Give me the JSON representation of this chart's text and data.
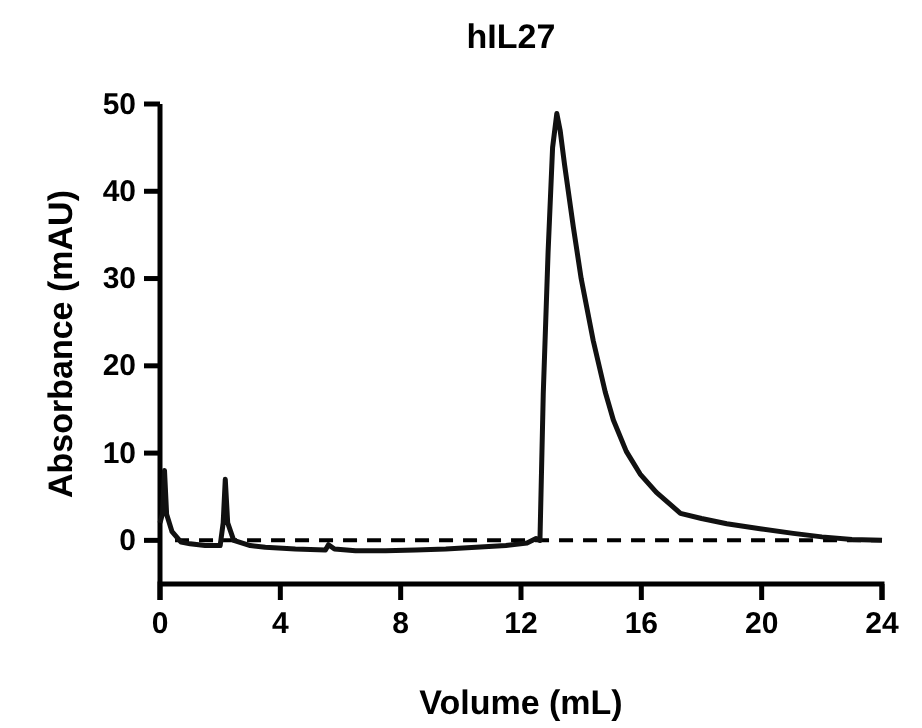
{
  "chart_data": {
    "type": "line",
    "title": "hIL27",
    "xlabel": "Volume (mL)",
    "ylabel": "Absorbance (mAU)",
    "xlim": [
      0,
      24
    ],
    "xticks": [
      0,
      4,
      8,
      12,
      16,
      20,
      24
    ],
    "ylim": [
      -5,
      50
    ],
    "yticks": [
      0,
      10,
      20,
      30,
      40,
      50
    ],
    "grid": false,
    "line_style": "solid",
    "ref_lines": [
      {
        "axis": "y",
        "value": 0,
        "label": null,
        "color": "#000000",
        "line_style": "dashed"
      }
    ],
    "series": [
      {
        "color": "#111111",
        "x": [
          0,
          0.08,
          0.15,
          0.22,
          0.4,
          0.7,
          1,
          1.5,
          2.0,
          2.1,
          2.17,
          2.25,
          2.45,
          3,
          3.5,
          4.5,
          5.5,
          5.6,
          5.8,
          6.5,
          7.5,
          8.5,
          9.5,
          10.5,
          11.5,
          12.2,
          12.5,
          12.63,
          12.74,
          12.9,
          13.05,
          13.19,
          13.3,
          13.45,
          13.74,
          14.0,
          14.4,
          14.8,
          15.07,
          15.5,
          15.96,
          16.5,
          17.3,
          18,
          18.84,
          20,
          21.05,
          22,
          23,
          24
        ],
        "values": [
          2,
          3,
          8,
          3,
          1,
          -0.2,
          -0.4,
          -0.6,
          -0.6,
          2,
          7,
          2,
          0,
          -0.6,
          -0.8,
          -1,
          -1.1,
          -0.5,
          -1,
          -1.2,
          -1.2,
          -1.1,
          -1,
          -0.8,
          -0.6,
          -0.3,
          0.2,
          0,
          16.8,
          33,
          45,
          48.9,
          47,
          43,
          35.9,
          30,
          22.9,
          17,
          13.8,
          10.2,
          7.6,
          5.5,
          3.1,
          2.5,
          1.9,
          1.3,
          0.8,
          0.4,
          0.1,
          0
        ]
      }
    ]
  }
}
